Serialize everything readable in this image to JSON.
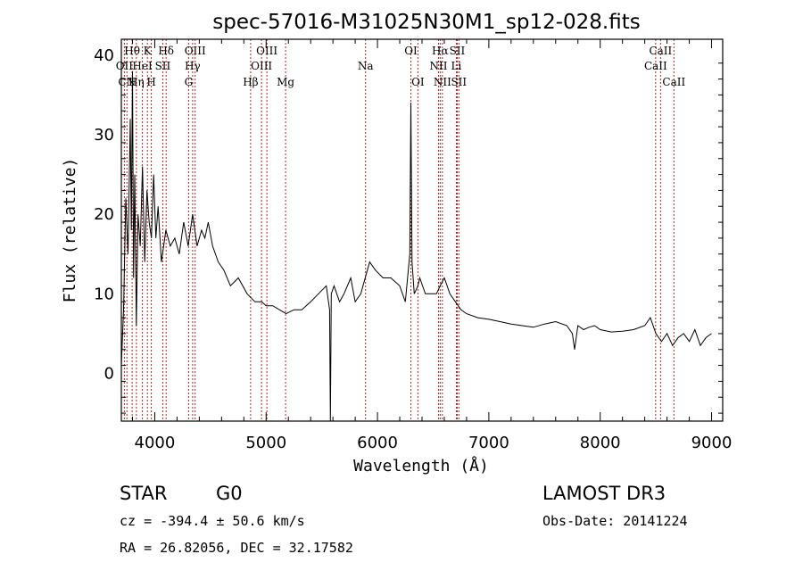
{
  "chart_data": {
    "type": "line",
    "title": "spec-57016-M31025N30M1_sp12-028.fits",
    "xlabel": "Wavelength (Å)",
    "ylabel": "Flux (relative)",
    "xlim": [
      3700,
      9100
    ],
    "ylim": [
      -6,
      42
    ],
    "xticks": [
      4000,
      5000,
      6000,
      7000,
      8000,
      9000
    ],
    "yticks": [
      0,
      10,
      20,
      30,
      40
    ],
    "series": [
      {
        "name": "spectrum",
        "x": [
          3700,
          3720,
          3740,
          3760,
          3780,
          3790,
          3800,
          3810,
          3820,
          3835,
          3850,
          3870,
          3890,
          3910,
          3930,
          3950,
          3970,
          3990,
          4010,
          4030,
          4060,
          4100,
          4140,
          4180,
          4220,
          4260,
          4300,
          4340,
          4380,
          4420,
          4450,
          4480,
          4520,
          4570,
          4620,
          4680,
          4750,
          4830,
          4900,
          4960,
          5000,
          5060,
          5120,
          5180,
          5250,
          5320,
          5400,
          5470,
          5540,
          5570,
          5577,
          5585,
          5610,
          5660,
          5700,
          5760,
          5800,
          5850,
          5890,
          5930,
          5980,
          6050,
          6120,
          6200,
          6250,
          6290,
          6300,
          6310,
          6330,
          6363,
          6380,
          6430,
          6480,
          6530,
          6563,
          6600,
          6650,
          6700,
          6750,
          6800,
          6900,
          7000,
          7100,
          7200,
          7300,
          7400,
          7500,
          7600,
          7700,
          7750,
          7770,
          7800,
          7850,
          7900,
          7950,
          8000,
          8100,
          8200,
          8300,
          8400,
          8450,
          8500,
          8550,
          8600,
          8650,
          8700,
          8750,
          8800,
          8850,
          8900,
          8950,
          9000
        ],
        "y": [
          1,
          8,
          22,
          15,
          32,
          18,
          38,
          12,
          25,
          6,
          20,
          16,
          26,
          14,
          23,
          19,
          17,
          25,
          17,
          21,
          14,
          18,
          16,
          17,
          15,
          19,
          16,
          20,
          16,
          18,
          17,
          19,
          16,
          14,
          13,
          11,
          12,
          10,
          9,
          9,
          8.5,
          8.5,
          8,
          7.5,
          8,
          8,
          9,
          10,
          11,
          8,
          -6,
          10,
          11,
          9,
          10,
          12,
          9,
          10,
          12,
          14,
          13,
          12,
          12,
          11,
          9,
          15,
          34,
          14,
          10,
          11,
          12,
          10,
          10,
          10,
          11,
          12,
          10,
          9,
          8,
          7.5,
          7,
          6.8,
          6.5,
          6.2,
          6,
          5.8,
          6.2,
          6.5,
          6,
          5,
          3,
          6,
          5.5,
          5.8,
          6,
          5.5,
          5.2,
          5.3,
          5.5,
          6,
          7,
          5,
          4,
          5,
          3.5,
          4.5,
          5,
          4,
          5.5,
          3.5,
          4.5,
          5
        ]
      }
    ],
    "emission_lines": [
      {
        "label": "Hθ",
        "wavelength": 3797,
        "row": 1
      },
      {
        "label": "K",
        "wavelength": 3934,
        "row": 1
      },
      {
        "label": "Hδ",
        "wavelength": 4102,
        "row": 1
      },
      {
        "label": "OIII",
        "wavelength": 4363,
        "row": 1
      },
      {
        "label": "OIII",
        "wavelength": 5007,
        "row": 1
      },
      {
        "label": "OI",
        "wavelength": 6300,
        "row": 1
      },
      {
        "label": "Hα",
        "wavelength": 6563,
        "row": 1
      },
      {
        "label": "SII",
        "wavelength": 6716,
        "row": 1
      },
      {
        "label": "CaII",
        "wavelength": 8542,
        "row": 1
      },
      {
        "label": "OII",
        "wavelength": 3727,
        "row": 2
      },
      {
        "label": "HeI",
        "wavelength": 3889,
        "row": 2
      },
      {
        "label": "SII",
        "wavelength": 4072,
        "row": 2
      },
      {
        "label": "Hγ",
        "wavelength": 4340,
        "row": 2
      },
      {
        "label": "OIII",
        "wavelength": 4959,
        "row": 2
      },
      {
        "label": "Na",
        "wavelength": 5893,
        "row": 2
      },
      {
        "label": "NII",
        "wavelength": 6548,
        "row": 2
      },
      {
        "label": "Li",
        "wavelength": 6708,
        "row": 2
      },
      {
        "label": "CaII",
        "wavelength": 8498,
        "row": 2
      },
      {
        "label": "CN",
        "wavelength": 3750,
        "row": 3
      },
      {
        "label": "Hη",
        "wavelength": 3835,
        "row": 3
      },
      {
        "label": "H",
        "wavelength": 3969,
        "row": 3
      },
      {
        "label": "G",
        "wavelength": 4304,
        "row": 3
      },
      {
        "label": "Hβ",
        "wavelength": 4861,
        "row": 3
      },
      {
        "label": "Mg",
        "wavelength": 5175,
        "row": 3
      },
      {
        "label": "OI",
        "wavelength": 6363,
        "row": 3
      },
      {
        "label": "NII",
        "wavelength": 6583,
        "row": 3
      },
      {
        "label": "SII",
        "wavelength": 6731,
        "row": 3
      },
      {
        "label": "CaII",
        "wavelength": 8662,
        "row": 3
      }
    ]
  },
  "info": {
    "class_label": "STAR",
    "subclass_label": "G0",
    "survey_label": "LAMOST DR3",
    "cz_text": "cz = -394.4 ± 50.6 km/s",
    "obs_date_text": "Obs-Date: 20141224",
    "radec_text": "RA =  26.82056, DEC =  32.17582"
  },
  "colors": {
    "spectrum": "#000000",
    "line_marker": "#b22222",
    "axes": "#000000"
  }
}
